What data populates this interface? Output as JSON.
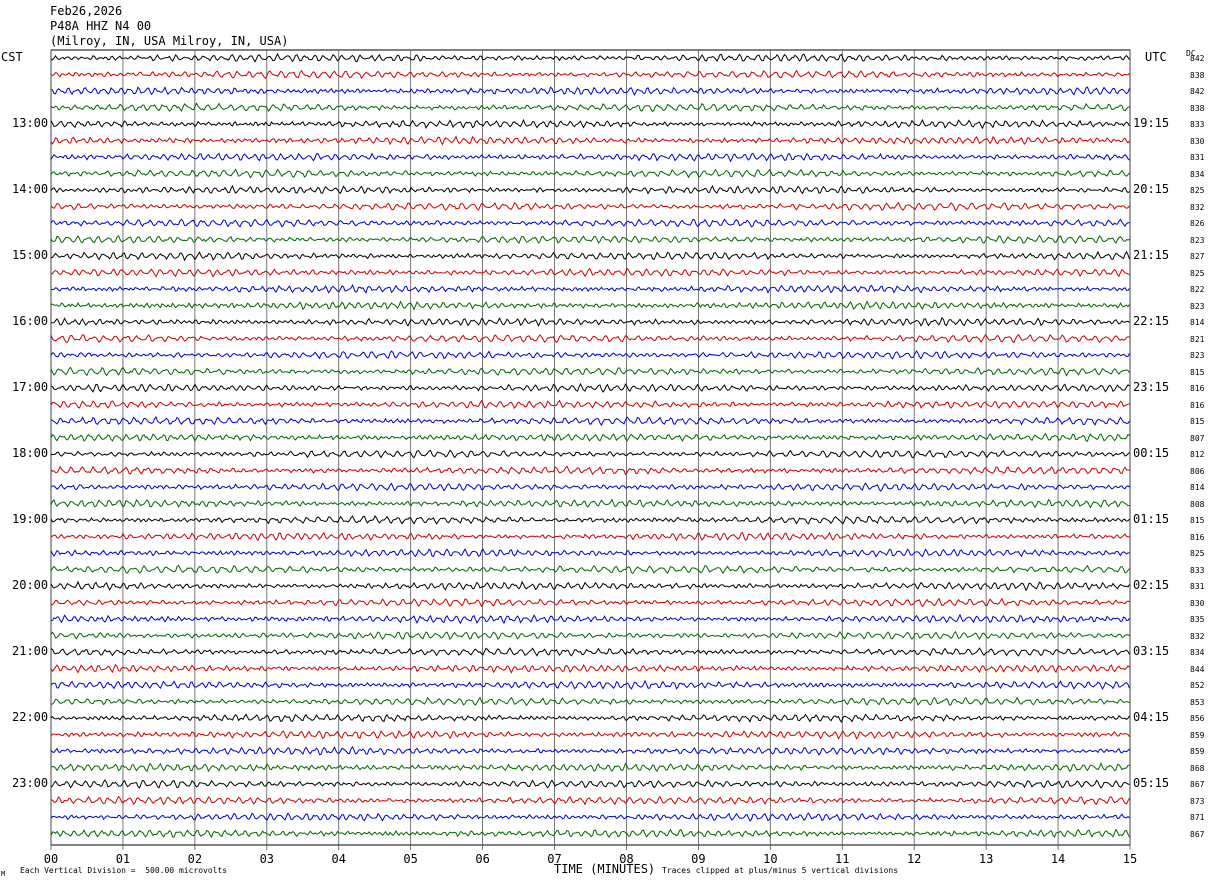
{
  "header": {
    "date": "Feb26,2026",
    "station": "P48A HHZ N4 00",
    "location": "(Milroy, IN, USA Milroy, IN, USA)"
  },
  "left_tz": "CST",
  "right_tz": "UTC",
  "dc_header": "DC",
  "footer": {
    "left": "Each Vertical Division =  500.00 microvolts",
    "right": "Traces clipped at plus/minus 5 vertical divisions",
    "corner": "M"
  },
  "chart_data": {
    "type": "line",
    "xlabel": "TIME (MINUTES)",
    "xlim": [
      0,
      15
    ],
    "x_ticks": [
      "00",
      "01",
      "02",
      "03",
      "04",
      "05",
      "06",
      "07",
      "08",
      "09",
      "10",
      "11",
      "12",
      "13",
      "14",
      "15"
    ],
    "trace_colors": [
      "#000000",
      "#cc0000",
      "#0000cc",
      "#006600"
    ],
    "hour_labels_left": [
      "13:00",
      "14:00",
      "15:00",
      "16:00",
      "17:00",
      "18:00",
      "19:00",
      "20:00",
      "21:00",
      "22:00",
      "23:00"
    ],
    "hour_labels_right": [
      "19:15",
      "20:15",
      "21:15",
      "22:15",
      "23:15",
      "00:15",
      "01:15",
      "02:15",
      "03:15",
      "04:15",
      "05:15"
    ],
    "dc_offsets": [
      842,
      838,
      842,
      838,
      833,
      830,
      831,
      834,
      825,
      832,
      826,
      823,
      827,
      825,
      822,
      823,
      814,
      821,
      823,
      815,
      816,
      816,
      815,
      807,
      812,
      806,
      814,
      808,
      815,
      816,
      825,
      833,
      831,
      830,
      835,
      832,
      834,
      844,
      852,
      853,
      856,
      859,
      859,
      868,
      867,
      873,
      871,
      867
    ],
    "traces_per_hour": 4,
    "trace_count": 48
  }
}
